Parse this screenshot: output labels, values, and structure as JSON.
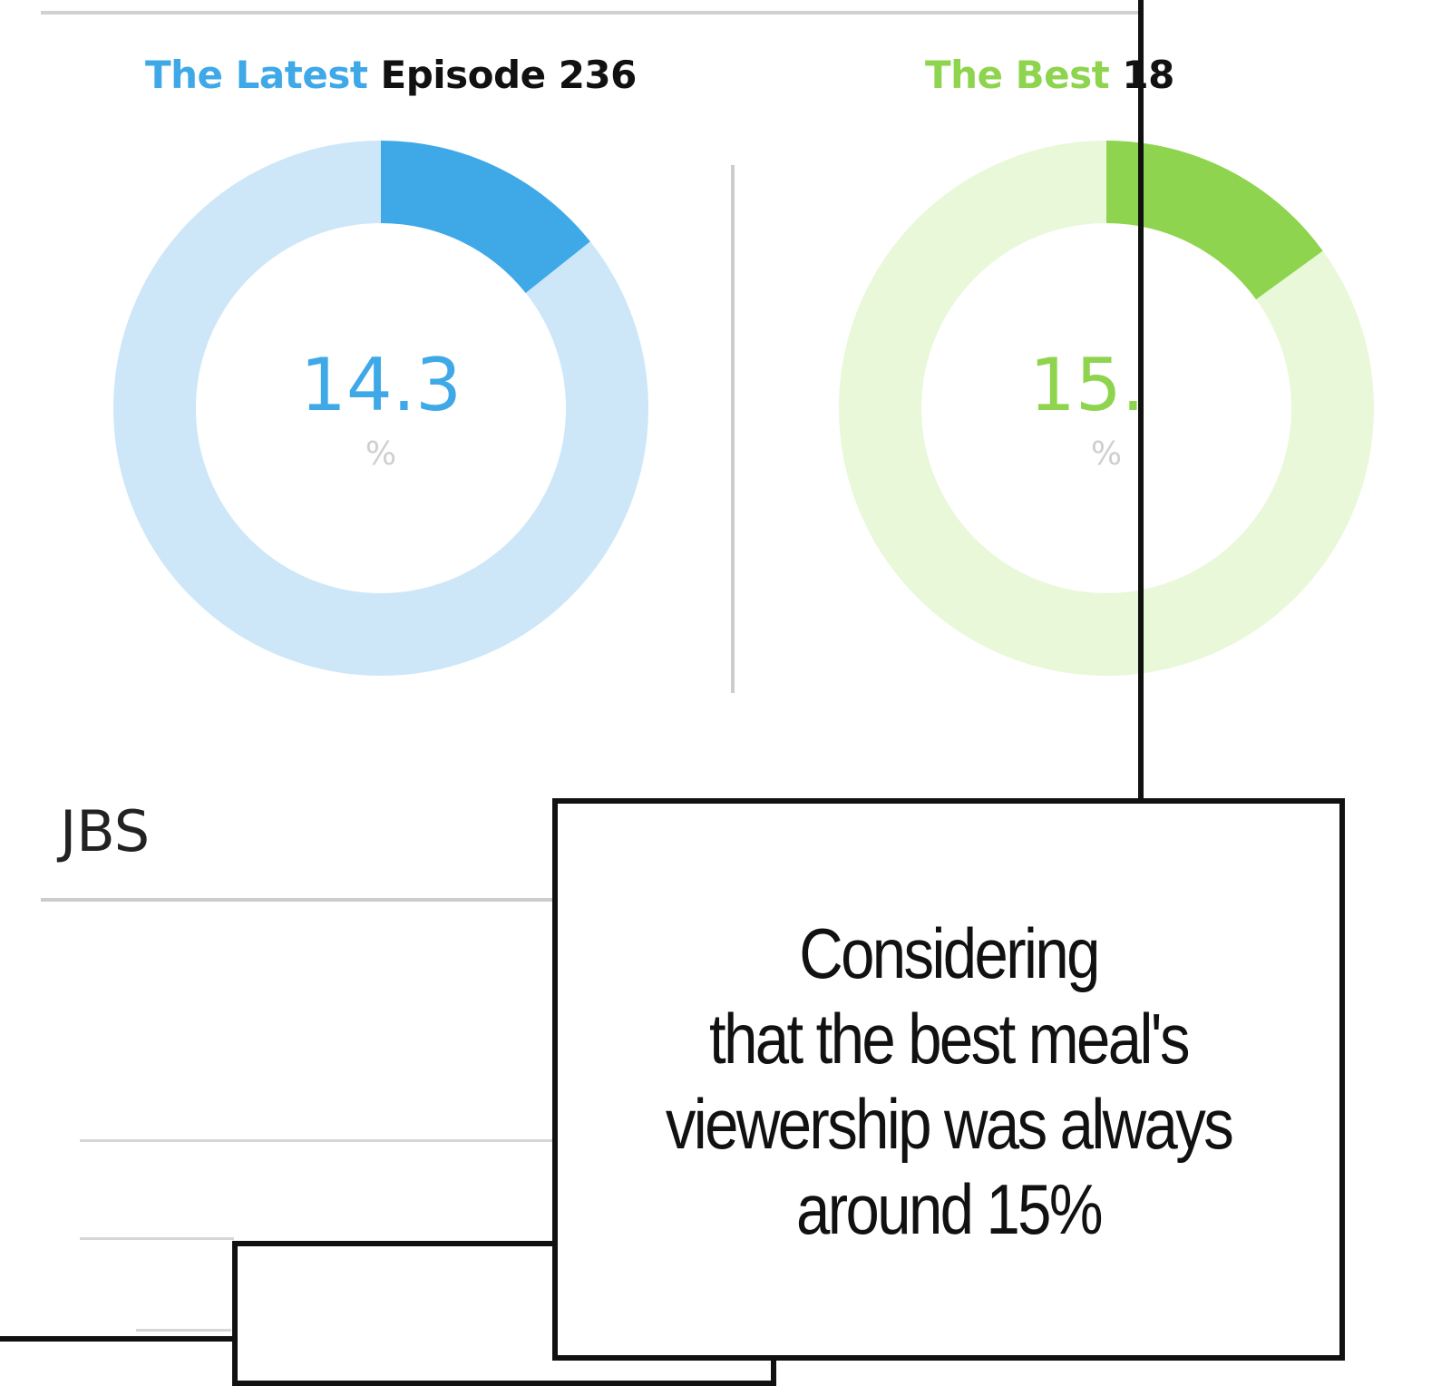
{
  "chart_data": [
    {
      "type": "pie",
      "title_accent": "The Latest",
      "title_rest": "Episode 236",
      "value": 14.3,
      "value_label": "14.3",
      "unit": "%",
      "colors": {
        "fill": "#3fa9e8",
        "track": "#cde7f9",
        "accent": "#3fa9e8"
      }
    },
    {
      "type": "pie",
      "title_accent": "The Best",
      "title_rest": "18",
      "value": 15.0,
      "value_label": "15.",
      "unit": "%",
      "colors": {
        "fill": "#8ed44e",
        "track": "#e8f8d8",
        "accent": "#8ed44e"
      }
    }
  ],
  "section_label": "JBS",
  "caption": {
    "lines": [
      "Considering",
      "that the best meal's",
      "viewership was always",
      "around 15%"
    ]
  }
}
